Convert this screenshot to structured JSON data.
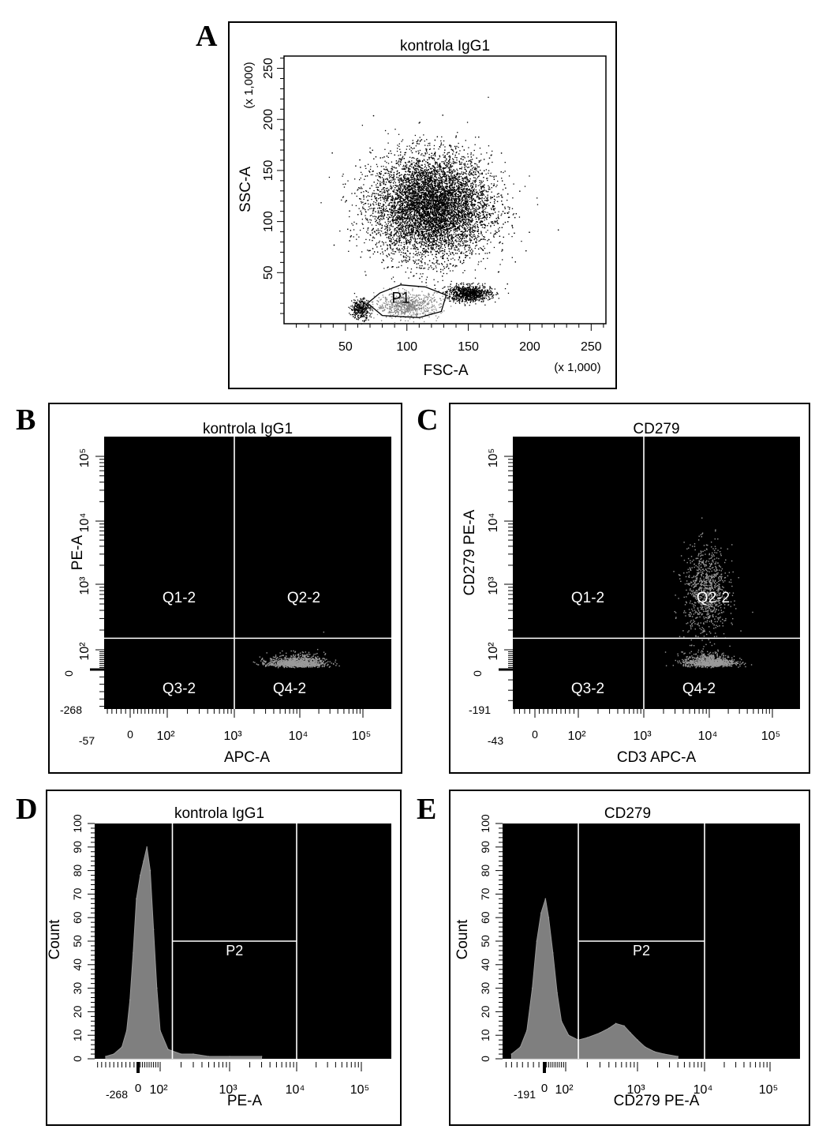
{
  "panel_letters": [
    "A",
    "B",
    "C",
    "D",
    "E"
  ],
  "colors": {
    "frame": "#000000",
    "plot_bg_dark": "#000000",
    "plot_bg_light": "#ffffff",
    "events_gate": "#808080",
    "gate_lines": "#ffffff",
    "histogram_fill": "#7f7f7f"
  },
  "chart_data": [
    {
      "type": "scatter",
      "panel": "A",
      "title": "kontrola IgG1",
      "xlabel": "FSC-A",
      "ylabel": "SSC-A",
      "x_multiplier": "(x 1,000)",
      "y_multiplier": "(x 1,000)",
      "xlim": [
        0,
        262
      ],
      "ylim": [
        0,
        262
      ],
      "x_ticks": [
        "50",
        "100",
        "150",
        "200",
        "250"
      ],
      "y_ticks": [
        "50",
        "100",
        "150",
        "200",
        "250"
      ],
      "gate": {
        "name": "P1",
        "vertices": [
          [
            80,
            8
          ],
          [
            68,
            20
          ],
          [
            78,
            30
          ],
          [
            95,
            38
          ],
          [
            115,
            36
          ],
          [
            132,
            28
          ],
          [
            128,
            12
          ],
          [
            110,
            6
          ]
        ]
      },
      "populations": [
        {
          "name": "main cluster",
          "center": [
            120,
            115
          ],
          "sd": [
            24,
            25
          ],
          "count": 9000,
          "color": "#000000"
        },
        {
          "name": "debris",
          "center": [
            62,
            15
          ],
          "sd": [
            4,
            5
          ],
          "count": 350,
          "color": "#000000"
        },
        {
          "name": "P1 events",
          "center": [
            100,
            18
          ],
          "sd": [
            13,
            6
          ],
          "count": 700,
          "color": "#808080"
        },
        {
          "name": "right clump",
          "center": [
            150,
            30
          ],
          "sd": [
            9,
            4
          ],
          "count": 900,
          "color": "#000000"
        }
      ]
    },
    {
      "type": "scatter",
      "panel": "B",
      "title": "kontrola IgG1",
      "xlabel": "APC-A",
      "ylabel": "PE-A",
      "x_scale": "biexponential",
      "y_scale": "biexponential",
      "xlim": [
        -57,
        200000
      ],
      "ylim": [
        -268,
        200000
      ],
      "x_ticks": [
        "-57",
        "0",
        "10²",
        "10³",
        "10⁴",
        "10⁵"
      ],
      "y_ticks": [
        "-268",
        "0",
        "10²",
        "10³",
        "10⁴",
        "10⁵"
      ],
      "quadrant_lines": {
        "x": 1000,
        "y": 150
      },
      "quadrants": [
        "Q1-2",
        "Q2-2",
        "Q3-2",
        "Q4-2"
      ],
      "populations": [
        {
          "name": "CD3+ PE-",
          "center_log": [
            3.95,
            1.55
          ],
          "sd_log": [
            0.22,
            0.17
          ],
          "count": 1100
        }
      ]
    },
    {
      "type": "scatter",
      "panel": "C",
      "title": "CD279",
      "xlabel": "CD3 APC-A",
      "ylabel": "CD279 PE-A",
      "x_scale": "biexponential",
      "y_scale": "biexponential",
      "xlim": [
        -43,
        200000
      ],
      "ylim": [
        -191,
        200000
      ],
      "x_ticks": [
        "-43",
        "0",
        "10²",
        "10³",
        "10⁴",
        "10⁵"
      ],
      "y_ticks": [
        "-191",
        "0",
        "10²",
        "10³",
        "10⁴",
        "10⁵"
      ],
      "quadrant_lines": {
        "x": 1000,
        "y": 150
      },
      "quadrants": [
        "Q1-2",
        "Q2-2",
        "Q3-2",
        "Q4-2"
      ],
      "populations": [
        {
          "name": "CD3+ PD-1-",
          "center_log": [
            4.0,
            1.6
          ],
          "sd_log": [
            0.2,
            0.17
          ],
          "count": 900
        },
        {
          "name": "CD3+ PD-1+",
          "center_log": [
            3.95,
            2.9
          ],
          "sd_log": [
            0.17,
            0.35
          ],
          "count": 900
        }
      ]
    },
    {
      "type": "histogram",
      "panel": "D",
      "title": "kontrola IgG1",
      "xlabel": "PE-A",
      "ylabel": "Count",
      "x_scale": "biexponential",
      "xlim": [
        -268,
        200000
      ],
      "ylim": [
        0,
        100
      ],
      "x_ticks": [
        "-268",
        "0",
        "10²",
        "10³",
        "10⁴",
        "10⁵"
      ],
      "y_ticks": [
        "0",
        "10",
        "20",
        "30",
        "40",
        "50",
        "60",
        "70",
        "80",
        "90",
        "100"
      ],
      "gate": {
        "name": "P2",
        "from": 150,
        "to": 10000,
        "marker_y": 50
      },
      "histogram": [
        {
          "x": -200,
          "count": 1
        },
        {
          "x": -150,
          "count": 2
        },
        {
          "x": -100,
          "count": 5
        },
        {
          "x": -70,
          "count": 12
        },
        {
          "x": -50,
          "count": 25
        },
        {
          "x": -30,
          "count": 45
        },
        {
          "x": -10,
          "count": 68
        },
        {
          "x": 10,
          "count": 78
        },
        {
          "x": 25,
          "count": 84
        },
        {
          "x": 40,
          "count": 90
        },
        {
          "x": 55,
          "count": 80
        },
        {
          "x": 70,
          "count": 55
        },
        {
          "x": 85,
          "count": 30
        },
        {
          "x": 100,
          "count": 12
        },
        {
          "x": 130,
          "count": 4
        },
        {
          "x": 200,
          "count": 2
        },
        {
          "x": 300,
          "count": 2
        },
        {
          "x": 500,
          "count": 1
        },
        {
          "x": 1000,
          "count": 1
        },
        {
          "x": 3000,
          "count": 1
        }
      ]
    },
    {
      "type": "histogram",
      "panel": "E",
      "title": "CD279",
      "xlabel": "CD279 PE-A",
      "ylabel": "Count",
      "x_scale": "biexponential",
      "xlim": [
        -191,
        200000
      ],
      "ylim": [
        0,
        100
      ],
      "x_ticks": [
        "-191",
        "0",
        "10²",
        "10³",
        "10⁴",
        "10⁵"
      ],
      "y_ticks": [
        "0",
        "10",
        "20",
        "30",
        "40",
        "50",
        "60",
        "70",
        "80",
        "90",
        "100"
      ],
      "gate": {
        "name": "P2",
        "from": 150,
        "to": 10000,
        "marker_y": 50
      },
      "histogram": [
        {
          "x": -150,
          "count": 2
        },
        {
          "x": -110,
          "count": 5
        },
        {
          "x": -80,
          "count": 12
        },
        {
          "x": -55,
          "count": 30
        },
        {
          "x": -35,
          "count": 50
        },
        {
          "x": -15,
          "count": 62
        },
        {
          "x": 5,
          "count": 68
        },
        {
          "x": 20,
          "count": 60
        },
        {
          "x": 40,
          "count": 45
        },
        {
          "x": 60,
          "count": 28
        },
        {
          "x": 80,
          "count": 16
        },
        {
          "x": 110,
          "count": 10
        },
        {
          "x": 150,
          "count": 8
        },
        {
          "x": 200,
          "count": 9
        },
        {
          "x": 300,
          "count": 11
        },
        {
          "x": 400,
          "count": 13
        },
        {
          "x": 500,
          "count": 15
        },
        {
          "x": 650,
          "count": 14
        },
        {
          "x": 800,
          "count": 11
        },
        {
          "x": 1000,
          "count": 8
        },
        {
          "x": 1300,
          "count": 5
        },
        {
          "x": 1800,
          "count": 3
        },
        {
          "x": 2500,
          "count": 2
        },
        {
          "x": 4000,
          "count": 1
        }
      ]
    }
  ]
}
